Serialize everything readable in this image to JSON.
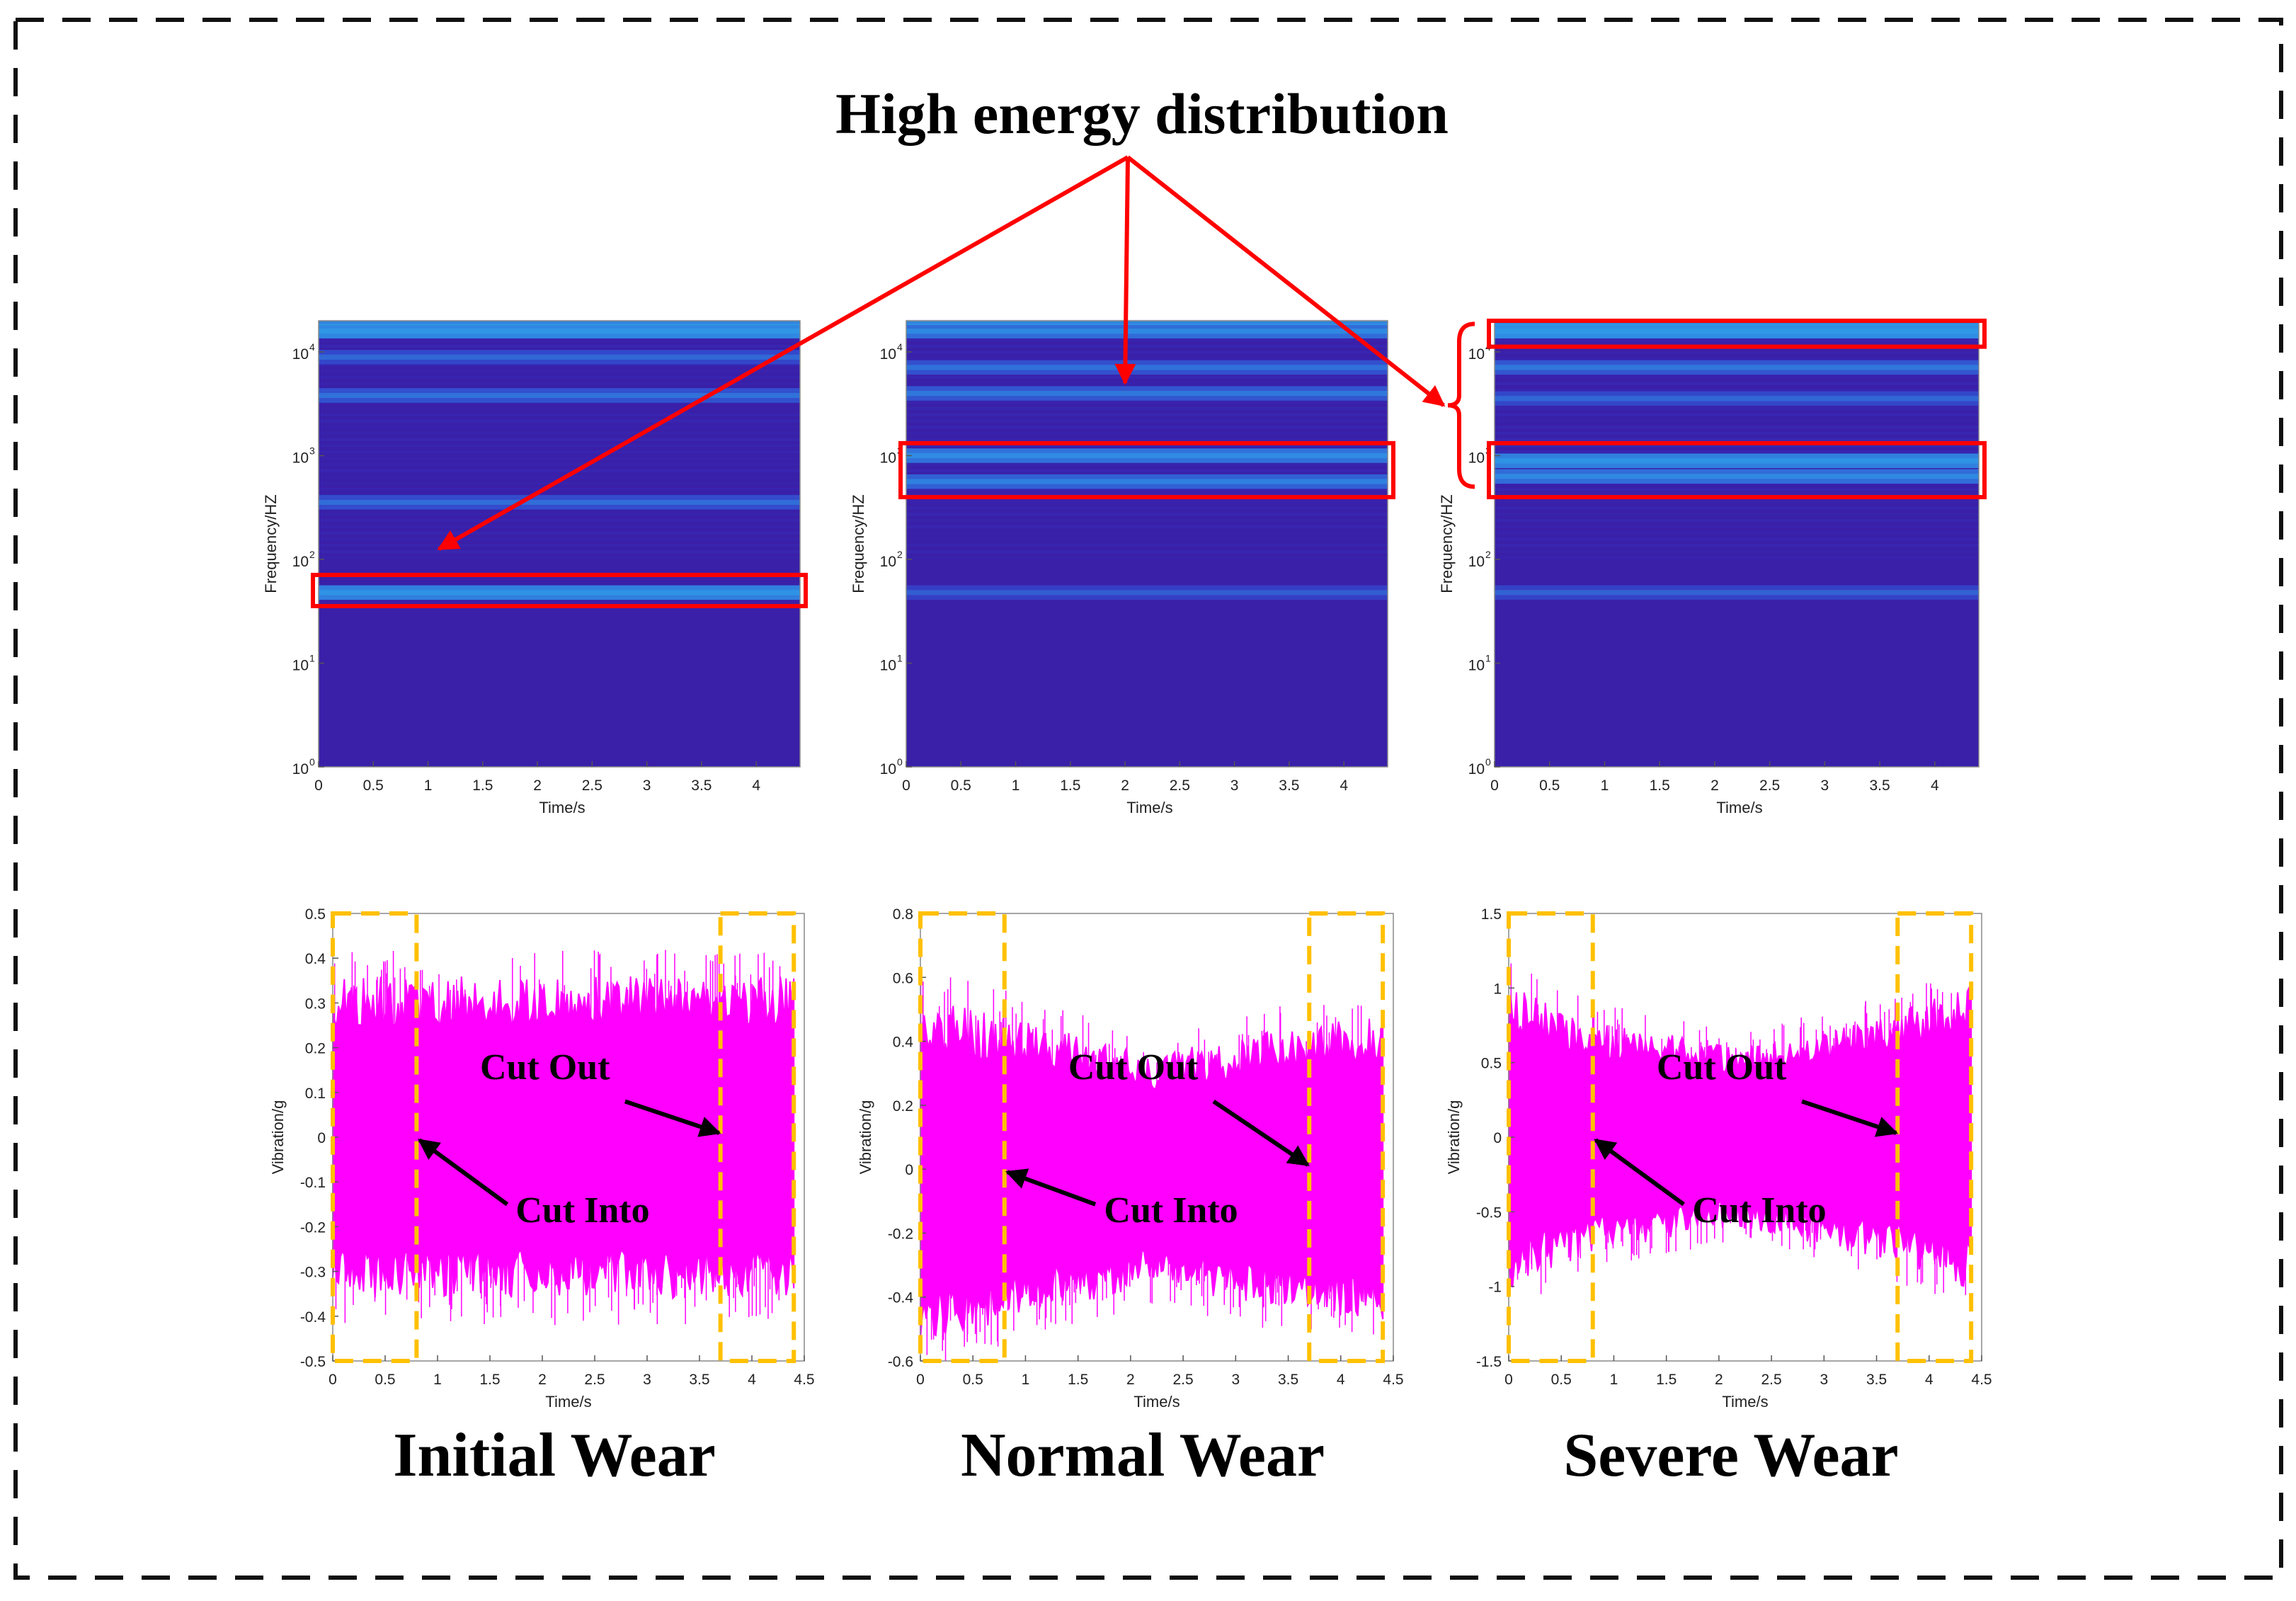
{
  "figure": {
    "title": "High energy distribution",
    "colors": {
      "signal": "#ff00ff",
      "highlight_box": "#ff0000",
      "cut_box": "#ffc000",
      "spectrogram_base": "#3a1fa8",
      "spectrogram_mid": "#2f49e0",
      "spectrogram_bright": "#2f9ce8",
      "arrow_black": "#000000"
    }
  },
  "chart_data": [
    {
      "type": "heatmap",
      "panel": "spectrogram",
      "xlabel": "Time/s",
      "ylabel": "Frequency/HZ",
      "xlim": [
        0,
        4.4
      ],
      "ylim_log10": [
        0,
        4.3
      ],
      "x_ticks": [
        "0",
        "0.5",
        "1",
        "1.5",
        "2",
        "2.5",
        "3",
        "3.5",
        "4"
      ],
      "y_ticks": [
        "10",
        "10",
        "10",
        "10",
        "10"
      ],
      "y_tick_exponents": [
        "0",
        "1",
        "2",
        "3",
        "4"
      ],
      "energy_bands_log10": [
        {
          "center": 4.2,
          "intensity": 0.9
        },
        {
          "center": 3.95,
          "intensity": 0.35
        },
        {
          "center": 3.58,
          "intensity": 0.45
        },
        {
          "center": 2.55,
          "intensity": 0.4
        },
        {
          "center": 1.68,
          "intensity": 0.85
        }
      ],
      "highlight_log10": [
        [
          1.55,
          1.85
        ]
      ]
    },
    {
      "type": "heatmap",
      "panel": "spectrogram",
      "xlabel": "Time/s",
      "ylabel": "Frequency/HZ",
      "xlim": [
        0,
        4.4
      ],
      "ylim_log10": [
        0,
        4.3
      ],
      "x_ticks": [
        "0",
        "0.5",
        "1",
        "1.5",
        "2",
        "2.5",
        "3",
        "3.5",
        "4"
      ],
      "y_ticks": [
        "10",
        "10",
        "10",
        "10",
        "10"
      ],
      "y_tick_exponents": [
        "0",
        "1",
        "2",
        "3",
        "4"
      ],
      "energy_bands_log10": [
        {
          "center": 4.2,
          "intensity": 0.7
        },
        {
          "center": 3.85,
          "intensity": 0.45
        },
        {
          "center": 3.6,
          "intensity": 0.5
        },
        {
          "center": 3.0,
          "intensity": 0.75
        },
        {
          "center": 2.75,
          "intensity": 0.6
        },
        {
          "center": 1.68,
          "intensity": 0.25
        }
      ],
      "highlight_log10": [
        [
          2.6,
          3.12
        ]
      ]
    },
    {
      "type": "heatmap",
      "panel": "spectrogram",
      "xlabel": "Time/s",
      "ylabel": "Frequency/HZ",
      "xlim": [
        0,
        4.4
      ],
      "ylim_log10": [
        0,
        4.3
      ],
      "x_ticks": [
        "0",
        "0.5",
        "1",
        "1.5",
        "2",
        "2.5",
        "3",
        "3.5",
        "4"
      ],
      "y_ticks": [
        "10",
        "10",
        "10",
        "10",
        "10"
      ],
      "y_tick_exponents": [
        "0",
        "1",
        "2",
        "3",
        "4"
      ],
      "energy_bands_log10": [
        {
          "center": 4.2,
          "intensity": 0.95
        },
        {
          "center": 3.85,
          "intensity": 0.5
        },
        {
          "center": 3.55,
          "intensity": 0.35
        },
        {
          "center": 2.95,
          "intensity": 0.85
        },
        {
          "center": 2.8,
          "intensity": 0.7
        },
        {
          "center": 1.68,
          "intensity": 0.3
        }
      ],
      "highlight_log10": [
        [
          4.05,
          4.3
        ],
        [
          2.6,
          3.12
        ]
      ]
    },
    {
      "type": "area",
      "panel": "vibration",
      "xlabel": "Time/s",
      "ylabel": "Vibration/g",
      "xlim": [
        0,
        4.5
      ],
      "ylim": [
        -0.5,
        0.5
      ],
      "x_ticks": [
        "0",
        "0.5",
        "1",
        "1.5",
        "2",
        "2.5",
        "3",
        "3.5",
        "4",
        "4.5"
      ],
      "y_ticks": [
        "0.5",
        "0.4",
        "0.3",
        "0.2",
        "0.1",
        "0",
        "-0.1",
        "-0.2",
        "-0.3",
        "-0.4",
        "-0.5"
      ],
      "signal_end": 4.4,
      "envelope": {
        "t": [
          0,
          0.8,
          2.2,
          3.7,
          4.4
        ],
        "amp": [
          0.3,
          0.3,
          0.3,
          0.3,
          0.3
        ]
      },
      "cut_windows": [
        [
          0,
          0.8
        ],
        [
          3.7,
          4.4
        ]
      ],
      "cut_into_x": 0.8,
      "cut_out_x": 3.7,
      "annotations": {
        "cut_out": "Cut Out",
        "cut_into": "Cut Into"
      },
      "caption": "Initial Wear"
    },
    {
      "type": "area",
      "panel": "vibration",
      "xlabel": "Time/s",
      "ylabel": "Vibration/g",
      "xlim": [
        0,
        4.5
      ],
      "ylim": [
        -0.6,
        0.8
      ],
      "x_ticks": [
        "0",
        "0.5",
        "1",
        "1.5",
        "2",
        "2.5",
        "3",
        "3.5",
        "4",
        "4.5"
      ],
      "y_ticks": [
        "0.8",
        "0.6",
        "0.4",
        "0.2",
        "0",
        "-0.2",
        "-0.4",
        "-0.6"
      ],
      "signal_end": 4.4,
      "envelope": {
        "t": [
          0,
          0.8,
          2.2,
          3.7,
          4.4
        ],
        "amp": [
          0.45,
          0.4,
          0.3,
          0.38,
          0.4
        ]
      },
      "cut_windows": [
        [
          0,
          0.8
        ],
        [
          3.7,
          4.4
        ]
      ],
      "cut_into_x": 0.8,
      "cut_out_x": 3.7,
      "annotations": {
        "cut_out": "Cut Out",
        "cut_into": "Cut Into"
      },
      "caption": "Normal Wear"
    },
    {
      "type": "area",
      "panel": "vibration",
      "xlabel": "Time/s",
      "ylabel": "Vibration/g",
      "xlim": [
        0,
        4.5
      ],
      "ylim": [
        -1.5,
        1.5
      ],
      "x_ticks": [
        "0",
        "0.5",
        "1",
        "1.5",
        "2",
        "2.5",
        "3",
        "3.5",
        "4",
        "4.5"
      ],
      "y_ticks": [
        "1.5",
        "1",
        "0.5",
        "0",
        "-0.5",
        "-1",
        "-1.5"
      ],
      "signal_end": 4.4,
      "envelope": {
        "t": [
          0,
          0.8,
          2.2,
          3.7,
          4.4
        ],
        "amp": [
          0.85,
          0.65,
          0.5,
          0.7,
          0.85
        ]
      },
      "cut_windows": [
        [
          0,
          0.8
        ],
        [
          3.7,
          4.4
        ]
      ],
      "cut_into_x": 0.8,
      "cut_out_x": 3.7,
      "annotations": {
        "cut_out": "Cut Out",
        "cut_into": "Cut Into"
      },
      "caption": "Severe Wear"
    }
  ]
}
